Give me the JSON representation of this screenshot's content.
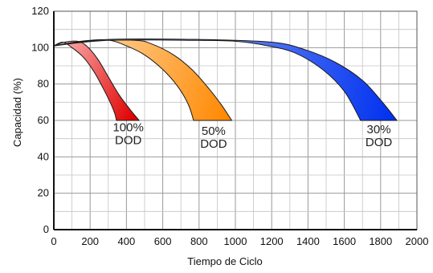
{
  "chart_data": {
    "type": "area",
    "title": "",
    "xlabel": "Tiempo de Ciclo",
    "ylabel": "Capacidad (%)",
    "xlim": [
      0,
      2000
    ],
    "ylim": [
      0,
      120
    ],
    "x_ticks": [
      "0",
      "200",
      "400",
      "600",
      "800",
      "1000",
      "1200",
      "1400",
      "1600",
      "1800",
      "2000"
    ],
    "y_ticks": [
      "0",
      "20",
      "40",
      "60",
      "80",
      "100",
      "120"
    ],
    "grid": true,
    "series": [
      {
        "label_lines": [
          "100%",
          "DOD"
        ],
        "color_light": "#ffc8c8",
        "color_dark": "#e00000",
        "upper": [
          [
            0,
            101
          ],
          [
            60,
            103
          ],
          [
            130,
            103.5
          ],
          [
            180,
            101
          ],
          [
            240,
            94
          ],
          [
            300,
            84
          ],
          [
            360,
            74
          ],
          [
            420,
            66
          ],
          [
            470,
            60
          ]
        ],
        "lower": [
          [
            0,
            101
          ],
          [
            50,
            103
          ],
          [
            100,
            100
          ],
          [
            160,
            95
          ],
          [
            220,
            87
          ],
          [
            270,
            78
          ],
          [
            310,
            70
          ],
          [
            335,
            64
          ],
          [
            345,
            60
          ]
        ],
        "label_at": [
          410,
          54
        ]
      },
      {
        "label_lines": [
          "50%",
          "DOD"
        ],
        "color_light": "#ffe8c8",
        "color_dark": "#ff8800",
        "upper": [
          [
            0,
            101
          ],
          [
            200,
            104
          ],
          [
            450,
            104
          ],
          [
            540,
            102
          ],
          [
            660,
            96
          ],
          [
            760,
            88
          ],
          [
            850,
            78
          ],
          [
            920,
            69
          ],
          [
            980,
            60
          ]
        ],
        "lower": [
          [
            0,
            101
          ],
          [
            200,
            104
          ],
          [
            310,
            104
          ],
          [
            400,
            101
          ],
          [
            500,
            96
          ],
          [
            600,
            88
          ],
          [
            680,
            79
          ],
          [
            740,
            69
          ],
          [
            770,
            60
          ]
        ],
        "label_at": [
          880,
          52
        ]
      },
      {
        "label_lines": [
          "30%",
          "DOD"
        ],
        "color_light": "#c8d8ff",
        "color_dark": "#0030ee",
        "upper": [
          [
            0,
            101
          ],
          [
            300,
            104.5
          ],
          [
            800,
            104.5
          ],
          [
            1200,
            103
          ],
          [
            1380,
            99
          ],
          [
            1550,
            92
          ],
          [
            1700,
            82
          ],
          [
            1810,
            70
          ],
          [
            1890,
            60
          ]
        ],
        "lower": [
          [
            0,
            101
          ],
          [
            300,
            104
          ],
          [
            800,
            104
          ],
          [
            1000,
            103.5
          ],
          [
            1180,
            101
          ],
          [
            1330,
            97
          ],
          [
            1480,
            88
          ],
          [
            1600,
            76
          ],
          [
            1690,
            60
          ]
        ],
        "label_at": [
          1790,
          53
        ]
      }
    ]
  }
}
